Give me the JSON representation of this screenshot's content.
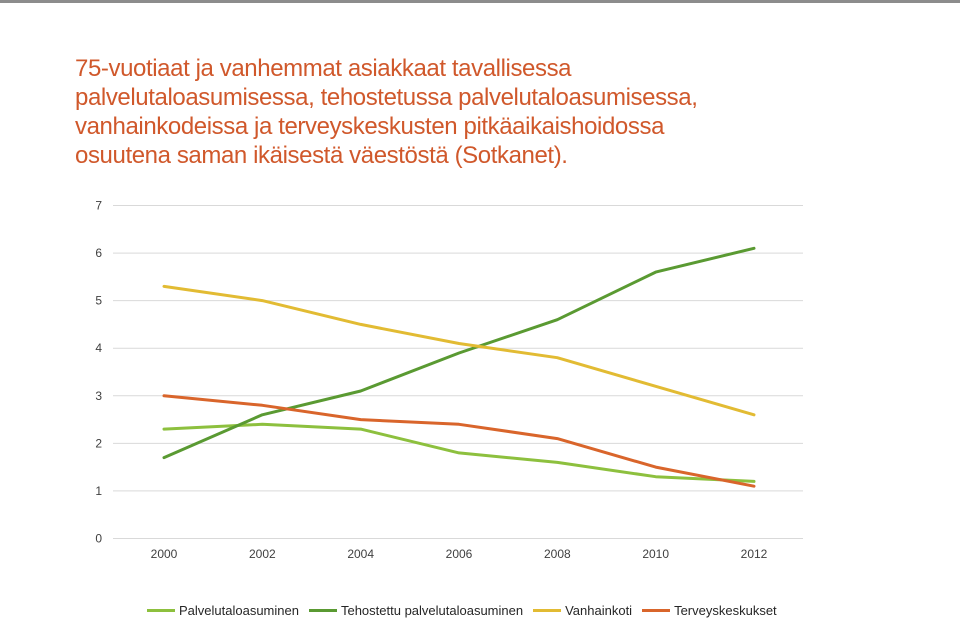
{
  "title_lines": [
    "75-vuotiaat ja vanhemmat asiakkaat tavallisessa",
    "palvelutaloasumisessa, tehostetussa palvelutaloasumisessa,",
    "vanhainkodeissa ja terveyskeskusten pitkäaikaishoidossa",
    "osuutena saman ikäisestä väestöstä (Sotkanet)."
  ],
  "colors": {
    "title": "#d0582b",
    "gridline": "#d9d9d9",
    "tick_text": "#404040",
    "top_rule": "#8c8c8c"
  },
  "chart_data": {
    "type": "line",
    "title": "75-vuotiaat ja vanhemmat asiakkaat tavallisessa palvelutaloasumisessa, tehostetussa palvelutaloasumisessa, vanhainkodeissa ja terveyskeskusten pitkäaikaishoidossa osuutena saman ikäisestä väestöstä (Sotkanet).",
    "x": [
      2000,
      2002,
      2004,
      2006,
      2008,
      2010,
      2012
    ],
    "x_tick_labels": [
      "2000",
      "2002",
      "2004",
      "2006",
      "2008",
      "2010",
      "2012"
    ],
    "y_ticks": [
      0,
      1,
      2,
      3,
      4,
      5,
      6,
      7
    ],
    "y_tick_labels": [
      "0",
      "1",
      "2",
      "3",
      "4",
      "5",
      "6",
      "7"
    ],
    "ylim": [
      0,
      7
    ],
    "grid": true,
    "legend_position": "bottom",
    "series": [
      {
        "name": "Palvelutaloasuminen",
        "color": "#8dc03e",
        "values": [
          2.3,
          2.4,
          2.3,
          1.8,
          1.6,
          1.3,
          1.2
        ]
      },
      {
        "name": "Tehostettu palvelutaloasuminen",
        "color": "#5a9a32",
        "values": [
          1.7,
          2.6,
          3.1,
          3.9,
          4.6,
          5.6,
          6.1
        ]
      },
      {
        "name": "Vanhainkoti",
        "color": "#e2bb33",
        "values": [
          5.3,
          5.0,
          4.5,
          4.1,
          3.8,
          3.2,
          2.6
        ]
      },
      {
        "name": "Terveyskeskukset",
        "color": "#d9652b",
        "values": [
          3.0,
          2.8,
          2.5,
          2.4,
          2.1,
          1.5,
          1.1
        ]
      }
    ]
  }
}
